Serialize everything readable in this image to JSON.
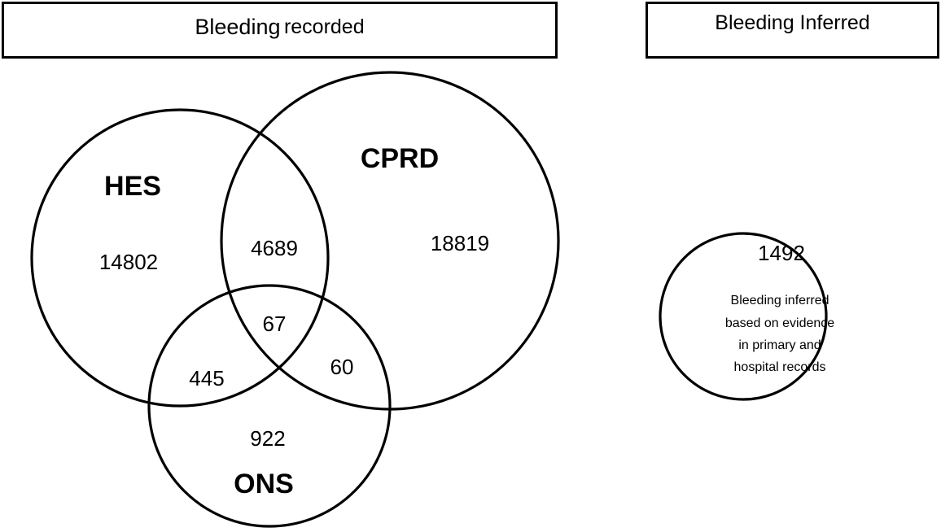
{
  "headers": {
    "recorded_main": "Bleeding",
    "recorded_sub": "recorded",
    "inferred": "Bleeding Inferred"
  },
  "venn": {
    "sets": {
      "hes": "HES",
      "cprd": "CPRD",
      "ons": "ONS"
    },
    "counts": {
      "hes_only": "14802",
      "hes_cprd": "4689",
      "cprd_only": "18819",
      "all_three": "67",
      "hes_ons": "445",
      "cprd_ons": "60",
      "ons_only": "922"
    }
  },
  "inferred": {
    "count": "1492",
    "note_lines": [
      "Bleeding inferred",
      "based on evidence",
      "in primary and",
      "hospital records"
    ]
  }
}
